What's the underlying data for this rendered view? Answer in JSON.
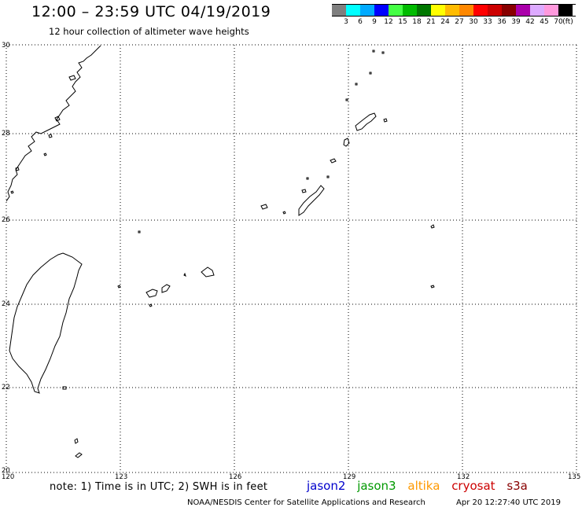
{
  "title": "12:00 – 23:59 UTC 04/19/2019",
  "subtitle": "12 hour collection of altimeter wave heights",
  "legend": {
    "colors": [
      "#7f7f7f",
      "#00ffff",
      "#00aaff",
      "#0000ff",
      "#44ff44",
      "#00bb00",
      "#007700",
      "#ffff00",
      "#ffbb00",
      "#ff8800",
      "#ff0000",
      "#cc0000",
      "#880000",
      "#aa00aa",
      "#ddaaff",
      "#ff99dd",
      "#000000"
    ],
    "labels": [
      "3",
      "6",
      "9",
      "12",
      "15",
      "18",
      "21",
      "24",
      "27",
      "30",
      "33",
      "36",
      "39",
      "42",
      "45",
      "70",
      "(ft)"
    ]
  },
  "axes": {
    "lat_labels": [
      "30",
      "28",
      "26",
      "24",
      "22",
      "20"
    ],
    "lon_labels": [
      "120",
      "123",
      "126",
      "129",
      "132",
      "135"
    ]
  },
  "note": "note:  1) Time is in UTC;  2) SWH is in feet",
  "satellites": [
    {
      "name": "jason2",
      "color": "#0000cc"
    },
    {
      "name": "jason3",
      "color": "#009900"
    },
    {
      "name": "altika",
      "color": "#ff9900"
    },
    {
      "name": "cryosat",
      "color": "#cc0000"
    },
    {
      "name": "s3a",
      "color": "#880000"
    }
  ],
  "credit": "NOAA/NESDIS Center for Satellite Applications and Research",
  "timestamp": "Apr 20 12:27:40 UTC 2019"
}
